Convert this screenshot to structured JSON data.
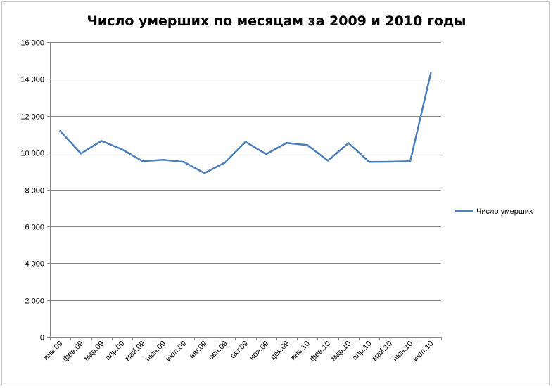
{
  "chart_data": {
    "type": "line",
    "title": "Число умерших по месяцам за 2009 и 2010 годы",
    "xlabel": "",
    "ylabel": "",
    "categories": [
      "янв.09",
      "фев.09",
      "мар.09",
      "апр.09",
      "май.09",
      "июн.09",
      "июл.09",
      "авг.09",
      "сен.09",
      "окт.09",
      "ноя.09",
      "дек.09",
      "янв.10",
      "фев.10",
      "мар.10",
      "апр.10",
      "май.10",
      "июн.10",
      "июл.10"
    ],
    "series": [
      {
        "name": "Число умерших",
        "color": "#4a7ebb",
        "values": [
          11180,
          9950,
          10640,
          10180,
          9540,
          9610,
          9500,
          8890,
          9460,
          10590,
          9920,
          10530,
          10410,
          9570,
          10520,
          9500,
          9510,
          9540,
          14340
        ]
      }
    ],
    "ylim": [
      0,
      16000
    ],
    "yticks": [
      0,
      2000,
      4000,
      6000,
      8000,
      10000,
      12000,
      14000,
      16000
    ],
    "ytick_labels": [
      "0",
      "2 000",
      "4 000",
      "6 000",
      "8 000",
      "10 000",
      "12 000",
      "14 000",
      "16 000"
    ],
    "grid": true,
    "legend_position": "right"
  }
}
